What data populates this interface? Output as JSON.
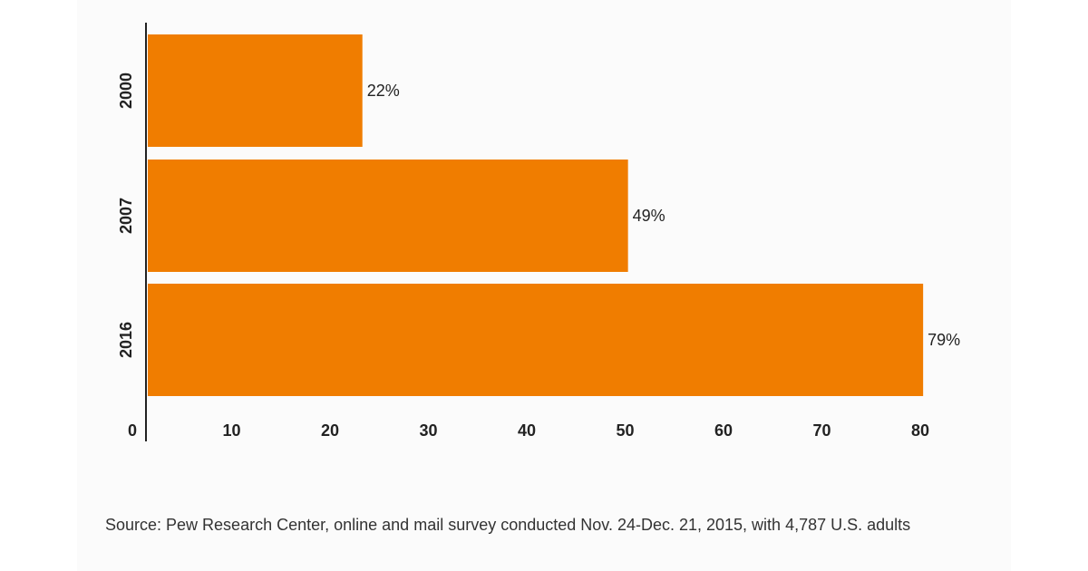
{
  "chart_data": {
    "type": "bar",
    "orientation": "horizontal",
    "categories": [
      "2000",
      "2007",
      "2016"
    ],
    "values": [
      22,
      49,
      79
    ],
    "value_labels": [
      "22%",
      "49%",
      "79%"
    ],
    "xticks": [
      "0",
      "10",
      "20",
      "30",
      "40",
      "50",
      "60",
      "70",
      "80"
    ],
    "xlim": [
      0,
      80
    ],
    "title": "",
    "xlabel": "",
    "ylabel": "",
    "grid": false,
    "legend": "none",
    "bar_color": "#f07d00",
    "axis_color": "#222222"
  },
  "source_note": "Source: Pew Research Center, online and mail survey conducted Nov. 24-Dec. 21, 2015, with 4,787 U.S. adults"
}
